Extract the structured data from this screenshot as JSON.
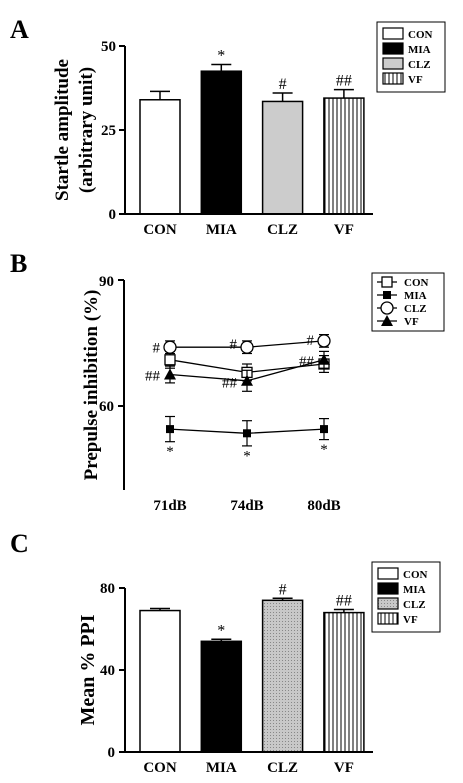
{
  "patterns": {
    "vline": "vline",
    "dots": "dots"
  },
  "chart_data": [
    {
      "panel": "A",
      "type": "bar",
      "ylabel_line1": "Startle amplitude",
      "ylabel_line2": "(arbitrary unit)",
      "ylim": [
        0,
        50
      ],
      "yticks": [
        "0",
        "25",
        "50"
      ],
      "categories": [
        "CON",
        "MIA",
        "CLZ",
        "VF"
      ],
      "values": [
        34,
        42.5,
        33.5,
        34.5
      ],
      "errors": [
        2.5,
        2,
        2.5,
        2.5
      ],
      "annotations": [
        "",
        "*",
        "#",
        "##"
      ],
      "legend": [
        "CON",
        "MIA",
        "CLZ",
        "VF"
      ],
      "fills": [
        "#ffffff",
        "#000000",
        "#cccccc",
        "vline"
      ],
      "legend_position": "top-right"
    },
    {
      "panel": "B",
      "type": "line",
      "ylabel": "Prepulse inhibition (%)",
      "ylim": [
        50,
        90
      ],
      "yticks": [
        "60",
        "90"
      ],
      "categories": [
        "71dB",
        "74dB",
        "80dB"
      ],
      "legend": [
        "CON",
        "MIA",
        "CLZ",
        "VF"
      ],
      "markers": [
        "square-open",
        "square-filled",
        "circle-open",
        "triangle-filled"
      ],
      "series": [
        {
          "name": "CON",
          "values": [
            71,
            68,
            70
          ],
          "errors": [
            2,
            2,
            2
          ]
        },
        {
          "name": "MIA",
          "values": [
            54.5,
            53.5,
            54.5
          ],
          "errors": [
            3,
            3,
            2.5
          ]
        },
        {
          "name": "CLZ",
          "values": [
            74,
            74,
            75.5
          ],
          "errors": [
            1.5,
            1.5,
            1.5
          ]
        },
        {
          "name": "VF",
          "values": [
            67.5,
            66,
            71
          ],
          "errors": [
            2,
            2.5,
            2
          ]
        }
      ],
      "annotations": [
        {
          "text": "#",
          "x": "71dB",
          "y": 74.2
        },
        {
          "text": "#",
          "x": "74dB",
          "y": 75
        },
        {
          "text": "#",
          "x": "80dB",
          "y": 76
        },
        {
          "text": "##",
          "x": "71dB",
          "y": 67.5
        },
        {
          "text": "##",
          "x": "74dB",
          "y": 65.8
        },
        {
          "text": "##",
          "x": "80dB",
          "y": 71
        },
        {
          "text": "*",
          "x": "71dB",
          "y": 49.5
        },
        {
          "text": "*",
          "x": "74dB",
          "y": 48.5
        },
        {
          "text": "*",
          "x": "80dB",
          "y": 50
        }
      ],
      "legend_position": "top-right"
    },
    {
      "panel": "C",
      "type": "bar",
      "ylabel": "Mean % PPI",
      "ylim": [
        0,
        80
      ],
      "yticks": [
        "0",
        "40",
        "80"
      ],
      "categories": [
        "CON",
        "MIA",
        "CLZ",
        "VF"
      ],
      "values": [
        69,
        54,
        74,
        68
      ],
      "errors": [
        1,
        1,
        1,
        1.5
      ],
      "annotations": [
        "",
        "*",
        "#",
        "##"
      ],
      "legend": [
        "CON",
        "MIA",
        "CLZ",
        "VF"
      ],
      "fills": [
        "#ffffff",
        "#000000",
        "dots",
        "vline"
      ],
      "legend_position": "top-right"
    }
  ]
}
